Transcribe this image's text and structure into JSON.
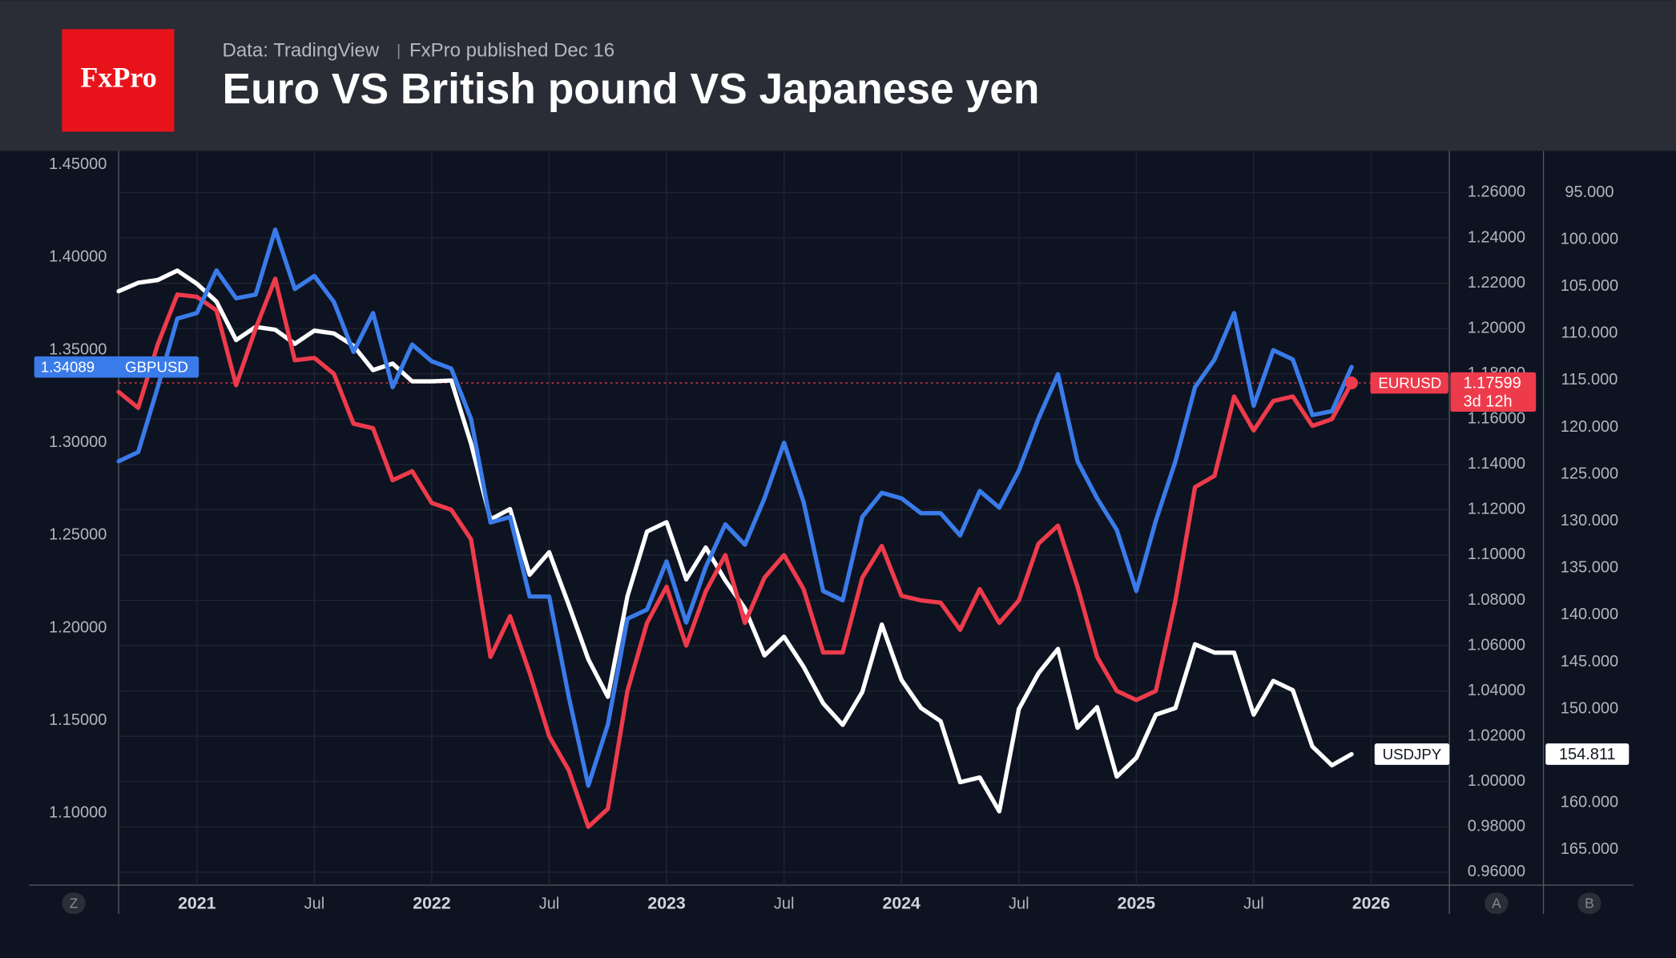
{
  "header": {
    "logo": "FxPro",
    "source": "Data: TradingView",
    "published": "FxPro published Dec 16"
  },
  "axis_buttons": [
    "Z",
    "A",
    "B"
  ],
  "chart_data": {
    "type": "line",
    "title": "Euro VS British pound VS Japanese yen",
    "x": [
      "2020-09",
      "2020-10",
      "2020-11",
      "2020-12",
      "2021-01",
      "2021-02",
      "2021-03",
      "2021-04",
      "2021-05",
      "2021-06",
      "2021-07",
      "2021-08",
      "2021-09",
      "2021-10",
      "2021-11",
      "2021-12",
      "2022-01",
      "2022-02",
      "2022-03",
      "2022-04",
      "2022-05",
      "2022-06",
      "2022-07",
      "2022-08",
      "2022-09",
      "2022-10",
      "2022-11",
      "2022-12",
      "2023-01",
      "2023-02",
      "2023-03",
      "2023-04",
      "2023-05",
      "2023-06",
      "2023-07",
      "2023-08",
      "2023-09",
      "2023-10",
      "2023-11",
      "2023-12",
      "2024-01",
      "2024-02",
      "2024-03",
      "2024-04",
      "2024-05",
      "2024-06",
      "2024-07",
      "2024-08",
      "2024-09",
      "2024-10",
      "2024-11",
      "2024-12",
      "2025-01",
      "2025-02",
      "2025-03",
      "2025-04",
      "2025-05",
      "2025-06",
      "2025-07",
      "2025-08",
      "2025-09",
      "2025-10",
      "2025-11",
      "2025-12"
    ],
    "xlim": [
      "2020-09",
      "2026-05"
    ],
    "xticks": [
      {
        "value": "2021-01",
        "label": "2021"
      },
      {
        "value": "2021-07",
        "label": "Jul"
      },
      {
        "value": "2022-01",
        "label": "2022"
      },
      {
        "value": "2022-07",
        "label": "Jul"
      },
      {
        "value": "2023-01",
        "label": "2023"
      },
      {
        "value": "2023-07",
        "label": "Jul"
      },
      {
        "value": "2024-01",
        "label": "2024"
      },
      {
        "value": "2024-07",
        "label": "Jul"
      },
      {
        "value": "2025-01",
        "label": "2025"
      },
      {
        "value": "2025-07",
        "label": "Jul"
      },
      {
        "value": "2026-01",
        "label": "2026"
      }
    ],
    "ylim": [
      1.0613,
      1.4575
    ],
    "yticks": [
      {
        "value": 1.1,
        "label": "1.10000"
      },
      {
        "value": 1.15,
        "label": "1.15000"
      },
      {
        "value": 1.2,
        "label": "1.20000"
      },
      {
        "value": 1.25,
        "label": "1.25000"
      },
      {
        "value": 1.3,
        "label": "1.30000"
      },
      {
        "value": 1.35,
        "label": "1.35000"
      },
      {
        "value": 1.4,
        "label": "1.40000"
      },
      {
        "value": 1.45,
        "label": "1.45000"
      }
    ],
    "y2lim": [
      0.9543,
      1.2784
    ],
    "y2ticks": [
      {
        "value": 0.96,
        "label": "0.96000"
      },
      {
        "value": 0.98,
        "label": "0.98000"
      },
      {
        "value": 1.0,
        "label": "1.00000"
      },
      {
        "value": 1.02,
        "label": "1.02000"
      },
      {
        "value": 1.04,
        "label": "1.04000"
      },
      {
        "value": 1.06,
        "label": "1.06000"
      },
      {
        "value": 1.08,
        "label": "1.08000"
      },
      {
        "value": 1.1,
        "label": "1.10000"
      },
      {
        "value": 1.12,
        "label": "1.12000"
      },
      {
        "value": 1.14,
        "label": "1.14000"
      },
      {
        "value": 1.16,
        "label": "1.16000"
      },
      {
        "value": 1.18,
        "label": "1.18000"
      },
      {
        "value": 1.2,
        "label": "1.20000"
      },
      {
        "value": 1.22,
        "label": "1.22000"
      },
      {
        "value": 1.24,
        "label": "1.24000"
      },
      {
        "value": 1.26,
        "label": "1.26000"
      }
    ],
    "y3lim": [
      168.76,
      90.55
    ],
    "y3ticks": [
      {
        "value": 95,
        "label": "95.000"
      },
      {
        "value": 100,
        "label": "100.000"
      },
      {
        "value": 105,
        "label": "105.000"
      },
      {
        "value": 110,
        "label": "110.000"
      },
      {
        "value": 115,
        "label": "115.000"
      },
      {
        "value": 120,
        "label": "120.000"
      },
      {
        "value": 125,
        "label": "125.000"
      },
      {
        "value": 130,
        "label": "130.000"
      },
      {
        "value": 135,
        "label": "135.000"
      },
      {
        "value": 140,
        "label": "140.000"
      },
      {
        "value": 145,
        "label": "145.000"
      },
      {
        "value": 150,
        "label": "150.000"
      },
      {
        "value": 155,
        "label": "155.000"
      },
      {
        "value": 160,
        "label": "160.000"
      },
      {
        "value": 165,
        "label": "165.000"
      }
    ],
    "grid": true,
    "countdown": "3d 12h",
    "series": [
      {
        "name": "GBPUSD",
        "color": "#3a7bea",
        "axis": "y",
        "values": [
          1.29,
          1.295,
          1.33,
          1.367,
          1.37,
          1.393,
          1.378,
          1.38,
          1.415,
          1.383,
          1.39,
          1.376,
          1.349,
          1.37,
          1.33,
          1.353,
          1.344,
          1.34,
          1.313,
          1.257,
          1.26,
          1.217,
          1.217,
          1.163,
          1.115,
          1.148,
          1.205,
          1.21,
          1.236,
          1.203,
          1.233,
          1.256,
          1.245,
          1.27,
          1.3,
          1.268,
          1.22,
          1.215,
          1.26,
          1.273,
          1.27,
          1.262,
          1.262,
          1.25,
          1.274,
          1.265,
          1.285,
          1.313,
          1.337,
          1.29,
          1.27,
          1.253,
          1.22,
          1.258,
          1.29,
          1.33,
          1.345,
          1.37,
          1.32,
          1.35,
          1.345,
          1.315,
          1.317,
          1.34089
        ]
      },
      {
        "name": "EURUSD",
        "color": "#ee3b4c",
        "axis": "y2",
        "values": [
          1.172,
          1.165,
          1.193,
          1.215,
          1.214,
          1.208,
          1.175,
          1.2,
          1.222,
          1.186,
          1.187,
          1.18,
          1.158,
          1.156,
          1.133,
          1.137,
          1.123,
          1.12,
          1.107,
          1.055,
          1.073,
          1.048,
          1.02,
          1.005,
          0.98,
          0.988,
          1.04,
          1.07,
          1.086,
          1.06,
          1.084,
          1.1,
          1.07,
          1.09,
          1.1,
          1.085,
          1.057,
          1.057,
          1.09,
          1.104,
          1.082,
          1.08,
          1.079,
          1.067,
          1.085,
          1.07,
          1.08,
          1.105,
          1.113,
          1.086,
          1.055,
          1.04,
          1.036,
          1.04,
          1.08,
          1.13,
          1.135,
          1.17,
          1.155,
          1.168,
          1.17,
          1.157,
          1.16,
          1.17599
        ]
      },
      {
        "name": "USDJPY",
        "color": "#ffffff",
        "axis": "y3",
        "values": [
          105.5,
          104.6,
          104.3,
          103.3,
          104.7,
          106.6,
          110.7,
          109.3,
          109.6,
          111.1,
          109.7,
          110.0,
          111.3,
          113.9,
          113.2,
          115.1,
          115.1,
          115.0,
          121.7,
          129.8,
          128.7,
          135.7,
          133.3,
          138.9,
          144.7,
          148.7,
          138.0,
          131.1,
          130.1,
          136.2,
          132.8,
          136.3,
          139.3,
          144.3,
          142.3,
          145.5,
          149.4,
          151.7,
          148.2,
          141.0,
          146.9,
          149.9,
          151.3,
          157.8,
          157.3,
          160.9,
          150.0,
          146.2,
          143.6,
          152.0,
          149.8,
          157.2,
          155.2,
          150.6,
          149.9,
          143.1,
          144.0,
          144.0,
          150.6,
          147.0,
          148.0,
          154.0,
          156.0,
          154.811
        ]
      }
    ]
  }
}
